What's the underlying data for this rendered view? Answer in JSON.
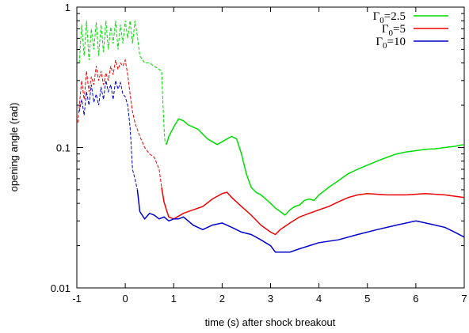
{
  "chart_data": {
    "type": "line",
    "xlabel": "time (s) after shock breakout",
    "ylabel": "opening angle (rad)",
    "xlim": [
      -1,
      7
    ],
    "ylim": [
      0.01,
      1
    ],
    "yscale": "log",
    "xticks": [
      "-1",
      "0",
      "1",
      "2",
      "3",
      "4",
      "5",
      "6",
      "7"
    ],
    "yticks": [
      "0.01",
      "0.1",
      "1"
    ],
    "legend_position": "top-right",
    "series": [
      {
        "name": "Γ0=2.5",
        "legend": {
          "base": "Γ",
          "sub": "0",
          "rest": "=2.5"
        },
        "color": "#00dd00",
        "dashed_until": 0.85,
        "x": [
          -0.95,
          -0.9,
          -0.85,
          -0.8,
          -0.75,
          -0.7,
          -0.65,
          -0.6,
          -0.55,
          -0.5,
          -0.45,
          -0.4,
          -0.35,
          -0.3,
          -0.25,
          -0.2,
          -0.15,
          -0.1,
          -0.05,
          0.0,
          0.05,
          0.1,
          0.15,
          0.2,
          0.25,
          0.3,
          0.4,
          0.5,
          0.6,
          0.7,
          0.75,
          0.78,
          0.8,
          0.82,
          0.85,
          0.9,
          1.0,
          1.1,
          1.2,
          1.3,
          1.5,
          1.7,
          1.8,
          1.9,
          2.0,
          2.1,
          2.2,
          2.3,
          2.4,
          2.5,
          2.6,
          2.7,
          2.8,
          2.9,
          3.0,
          3.1,
          3.2,
          3.3,
          3.4,
          3.5,
          3.6,
          3.7,
          3.8,
          3.9,
          4.0,
          4.2,
          4.4,
          4.6,
          4.8,
          5.0,
          5.2,
          5.4,
          5.6,
          5.8,
          6.0,
          6.2,
          6.4,
          6.6,
          6.8,
          7.0
        ],
        "y": [
          0.4,
          0.75,
          0.45,
          0.8,
          0.42,
          0.7,
          0.5,
          0.78,
          0.45,
          0.75,
          0.48,
          0.8,
          0.5,
          0.72,
          0.55,
          0.8,
          0.5,
          0.75,
          0.55,
          0.8,
          0.6,
          0.8,
          0.55,
          0.8,
          0.62,
          0.45,
          0.4,
          0.4,
          0.38,
          0.36,
          0.35,
          0.2,
          0.14,
          0.11,
          0.105,
          0.12,
          0.14,
          0.16,
          0.155,
          0.145,
          0.135,
          0.115,
          0.11,
          0.105,
          0.11,
          0.115,
          0.12,
          0.115,
          0.09,
          0.065,
          0.052,
          0.048,
          0.046,
          0.043,
          0.04,
          0.037,
          0.035,
          0.033,
          0.036,
          0.038,
          0.039,
          0.042,
          0.043,
          0.042,
          0.046,
          0.052,
          0.058,
          0.065,
          0.07,
          0.075,
          0.08,
          0.085,
          0.09,
          0.093,
          0.095,
          0.097,
          0.098,
          0.1,
          0.102,
          0.105
        ]
      },
      {
        "name": "Γ0=5",
        "legend": {
          "base": "Γ",
          "sub": "0",
          "rest": "=5"
        },
        "color": "#ee0000",
        "dashed_until": 0.75,
        "x": [
          -0.98,
          -0.9,
          -0.85,
          -0.8,
          -0.75,
          -0.7,
          -0.65,
          -0.6,
          -0.55,
          -0.5,
          -0.45,
          -0.4,
          -0.35,
          -0.3,
          -0.25,
          -0.2,
          -0.15,
          -0.1,
          -0.05,
          0.0,
          0.05,
          0.1,
          0.15,
          0.2,
          0.3,
          0.4,
          0.5,
          0.6,
          0.7,
          0.75,
          0.8,
          0.85,
          0.9,
          1.0,
          1.2,
          1.4,
          1.6,
          1.8,
          2.0,
          2.1,
          2.2,
          2.4,
          2.6,
          2.8,
          3.0,
          3.1,
          3.2,
          3.4,
          3.6,
          3.8,
          4.0,
          4.2,
          4.4,
          4.6,
          4.8,
          5.0,
          5.4,
          5.8,
          6.2,
          6.6,
          7.0
        ],
        "y": [
          0.15,
          0.3,
          0.22,
          0.35,
          0.25,
          0.32,
          0.28,
          0.38,
          0.3,
          0.35,
          0.28,
          0.34,
          0.3,
          0.38,
          0.33,
          0.42,
          0.36,
          0.4,
          0.38,
          0.42,
          0.33,
          0.24,
          0.18,
          0.15,
          0.12,
          0.1,
          0.09,
          0.085,
          0.07,
          0.052,
          0.041,
          0.036,
          0.032,
          0.031,
          0.034,
          0.036,
          0.038,
          0.043,
          0.047,
          0.048,
          0.044,
          0.038,
          0.033,
          0.028,
          0.025,
          0.024,
          0.026,
          0.029,
          0.032,
          0.034,
          0.036,
          0.038,
          0.041,
          0.044,
          0.046,
          0.047,
          0.046,
          0.046,
          0.047,
          0.046,
          0.044
        ]
      },
      {
        "name": "Γ0=10",
        "legend": {
          "base": "Γ",
          "sub": "0",
          "rest": "=10"
        },
        "color": "#0000cc",
        "dashed_until": 0.25,
        "x": [
          -0.95,
          -0.9,
          -0.85,
          -0.8,
          -0.75,
          -0.7,
          -0.65,
          -0.6,
          -0.55,
          -0.5,
          -0.45,
          -0.4,
          -0.35,
          -0.3,
          -0.25,
          -0.2,
          -0.15,
          -0.1,
          -0.05,
          0.0,
          0.05,
          0.1,
          0.15,
          0.2,
          0.25,
          0.3,
          0.4,
          0.5,
          0.6,
          0.7,
          0.8,
          0.9,
          1.0,
          1.1,
          1.2,
          1.3,
          1.4,
          1.5,
          1.6,
          1.7,
          1.8,
          2.0,
          2.2,
          2.4,
          2.6,
          2.8,
          3.0,
          3.1,
          3.2,
          3.4,
          3.6,
          3.8,
          4.0,
          4.4,
          4.8,
          5.2,
          5.6,
          6.0,
          6.2,
          6.4,
          6.6,
          6.8,
          7.0
        ],
        "y": [
          0.18,
          0.22,
          0.17,
          0.25,
          0.2,
          0.28,
          0.21,
          0.24,
          0.2,
          0.27,
          0.22,
          0.3,
          0.25,
          0.28,
          0.22,
          0.3,
          0.26,
          0.29,
          0.24,
          0.23,
          0.2,
          0.14,
          0.07,
          0.06,
          0.05,
          0.035,
          0.031,
          0.034,
          0.033,
          0.031,
          0.032,
          0.03,
          0.031,
          0.031,
          0.032,
          0.03,
          0.028,
          0.027,
          0.026,
          0.027,
          0.028,
          0.029,
          0.027,
          0.025,
          0.024,
          0.022,
          0.02,
          0.018,
          0.018,
          0.018,
          0.019,
          0.02,
          0.021,
          0.022,
          0.024,
          0.026,
          0.028,
          0.03,
          0.029,
          0.028,
          0.027,
          0.025,
          0.023
        ]
      }
    ]
  }
}
